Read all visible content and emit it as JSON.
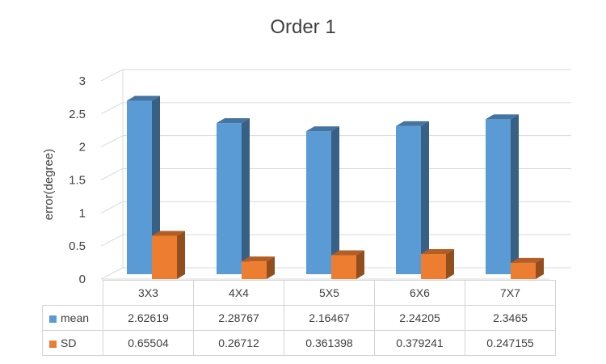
{
  "chart_data": {
    "type": "bar",
    "title": "Order 1",
    "ylabel": "error(degree)",
    "xlabel": "",
    "categories": [
      "3X3",
      "4X4",
      "5X5",
      "6X6",
      "7X7"
    ],
    "yticks": [
      "0",
      "0.5",
      "1",
      "1.5",
      "2",
      "2.5",
      "3"
    ],
    "ylim": [
      0,
      3
    ],
    "grid": true,
    "legend": "data-table-below",
    "series": [
      {
        "name": "mean",
        "color": "#5b9bd5",
        "values": [
          2.62619,
          2.28767,
          2.16467,
          2.24205,
          2.3465
        ],
        "labels": [
          "2.62619",
          "2.28767",
          "2.16467",
          "2.24205",
          "2.3465"
        ]
      },
      {
        "name": "SD",
        "color": "#ed7d31",
        "values": [
          0.65504,
          0.26712,
          0.361398,
          0.379241,
          0.247155
        ],
        "labels": [
          "0.65504",
          "0.26712",
          "0.361398",
          "0.379241",
          "0.247155"
        ]
      }
    ]
  }
}
